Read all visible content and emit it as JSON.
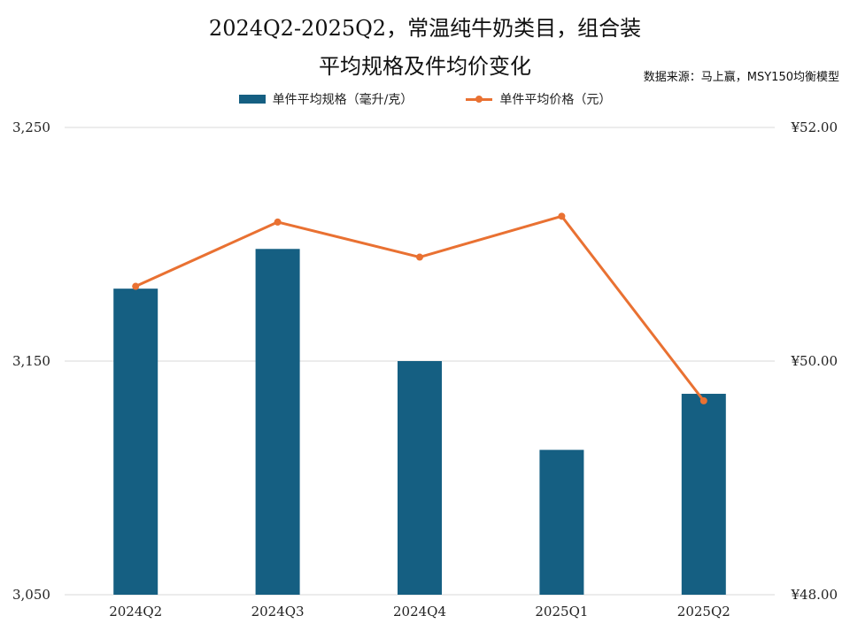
{
  "title_line1": "2024Q2-2025Q2，常温纯牛奶类目，组合装",
  "title_line2": "平均规格及件均价变化",
  "source": "数据来源：马上赢，MSY150均衡模型",
  "colors": {
    "bar": "#155f82",
    "line": "#e97132",
    "grid": "#d9d9d9"
  },
  "chart_data": {
    "type": "bar+line",
    "categories": [
      "2024Q2",
      "2024Q3",
      "2024Q4",
      "2025Q1",
      "2025Q2"
    ],
    "series": [
      {
        "name": "单件平均规格（毫升/克）",
        "type": "bar",
        "axis": "left",
        "values": [
          3181,
          3198,
          3150,
          3112,
          3136
        ]
      },
      {
        "name": "单件平均价格（元）",
        "type": "line",
        "axis": "right",
        "values": [
          50.64,
          51.19,
          50.89,
          51.24,
          49.66
        ]
      }
    ],
    "left_axis": {
      "min": 3050,
      "max": 3250,
      "ticks": [
        "3,250",
        "3,150",
        "3,050"
      ],
      "tick_values": [
        3250,
        3150,
        3050
      ]
    },
    "right_axis": {
      "min": 48,
      "max": 52,
      "ticks": [
        "¥52.00",
        "¥50.00",
        "¥48.00"
      ],
      "tick_values": [
        52,
        50,
        48
      ]
    },
    "grid": true,
    "legend_position": "top"
  }
}
